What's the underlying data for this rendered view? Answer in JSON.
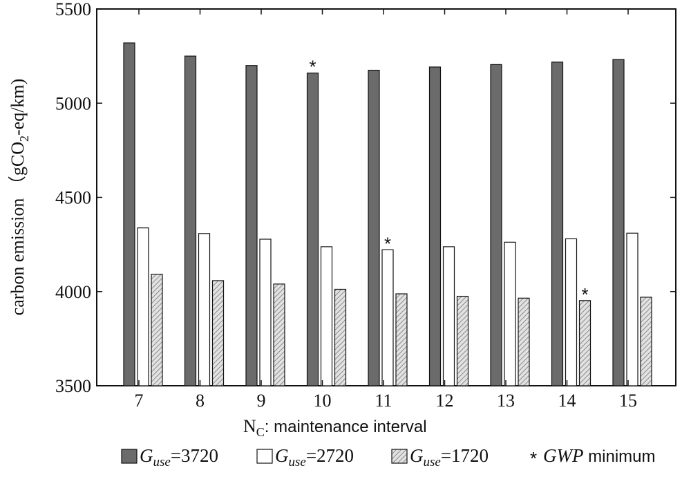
{
  "chart_data": {
    "type": "bar",
    "title": "",
    "xlabel": "N_C:  maintenance interval",
    "xlabel_parts": {
      "main": "N",
      "sub": "C",
      "rest": ":   maintenance interval"
    },
    "ylabel": "carbon emission (gCO2-eq/km)",
    "ylabel_parts": {
      "main": "carbon emission （gCO",
      "sub": "2",
      "rest": "-eq/km)"
    },
    "ylim": [
      3500,
      5500
    ],
    "yticks": [
      "3500",
      "4000",
      "4500",
      "5000",
      "5500"
    ],
    "categories": [
      "7",
      "8",
      "9",
      "10",
      "11",
      "12",
      "13",
      "14",
      "15"
    ],
    "grid": false,
    "series": [
      {
        "name": "G_use=3720",
        "label_main": "G",
        "label_sub": "use",
        "label_rest": "=3720",
        "fill": "dark",
        "values": [
          5320,
          5250,
          5200,
          5160,
          5175,
          5192,
          5205,
          5218,
          5232
        ]
      },
      {
        "name": "G_use=2720",
        "label_main": "G",
        "label_sub": "use",
        "label_rest": "=2720",
        "fill": "white",
        "values": [
          4338,
          4308,
          4278,
          4238,
          4222,
          4238,
          4262,
          4280,
          4310
        ]
      },
      {
        "name": "G_use=1720",
        "label_main": "G",
        "label_sub": "use",
        "label_rest": "=1720",
        "fill": "hatched",
        "values": [
          4092,
          4058,
          4040,
          4012,
          3988,
          3975,
          3965,
          3952,
          3970
        ]
      }
    ],
    "markers": [
      {
        "symbol": "*",
        "series": 0,
        "category": "10"
      },
      {
        "symbol": "*",
        "series": 1,
        "category": "11"
      },
      {
        "symbol": "*",
        "series": 2,
        "category": "14"
      }
    ],
    "marker_legend": {
      "symbol": "*",
      "label_italic": "GWP",
      "label_rest": " minimum"
    },
    "legend_position": "bottom",
    "colors": {
      "dark": "#6b6b6b",
      "white": "#ffffff",
      "hatch_bg": "#e2e2e2",
      "hatch_line": "#8a8a8a",
      "axis": "#111111"
    }
  }
}
